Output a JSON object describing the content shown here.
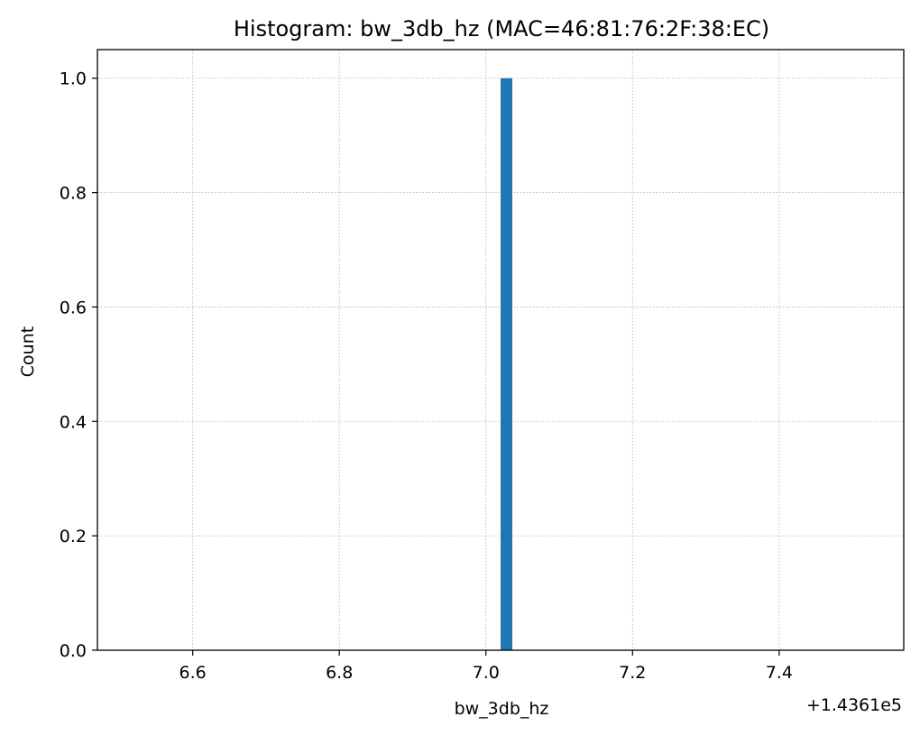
{
  "chart_data": {
    "type": "bar",
    "title": "Histogram: bw_3db_hz (MAC=46:81:76:2F:38:EC)",
    "xlabel": "bw_3db_hz",
    "ylabel": "Count",
    "x_offset_label": "+1.4361e5",
    "xlim": [
      6.47,
      7.57
    ],
    "ylim": [
      0,
      1.05
    ],
    "x_ticks": [
      6.6,
      6.8,
      7.0,
      7.2,
      7.4
    ],
    "x_tick_labels": [
      "6.6",
      "6.8",
      "7.0",
      "7.2",
      "7.4"
    ],
    "y_ticks": [
      0.0,
      0.2,
      0.4,
      0.6,
      0.8,
      1.0
    ],
    "y_tick_labels": [
      "0.0",
      "0.2",
      "0.4",
      "0.6",
      "0.8",
      "1.0"
    ],
    "bars": [
      {
        "x_start": 7.02,
        "x_end": 7.036,
        "count": 1
      }
    ],
    "grid": true,
    "bar_color": "#1f77b4",
    "grid_color": "#b0b0b0"
  }
}
